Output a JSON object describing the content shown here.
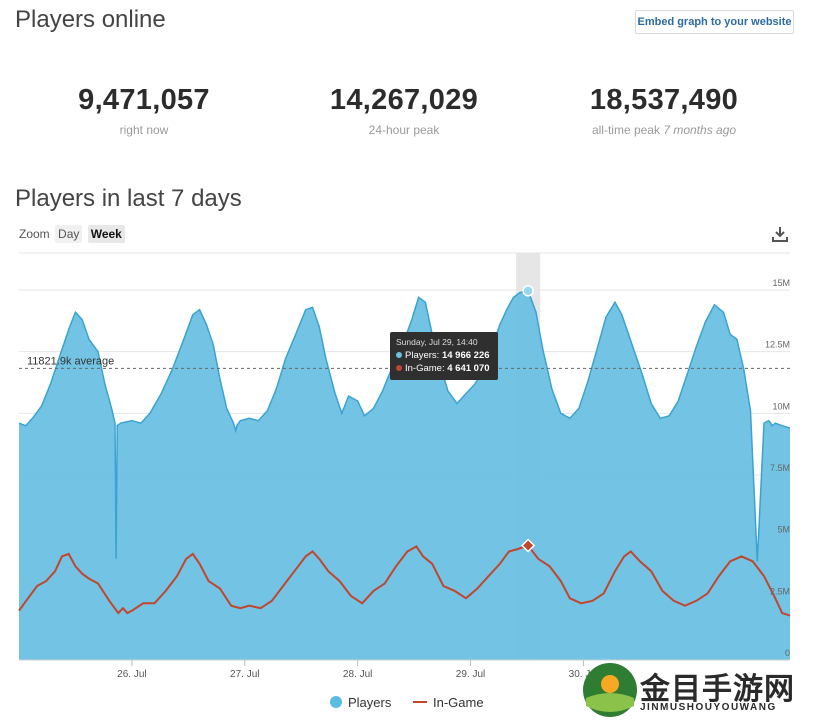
{
  "header": {
    "title": "Players online",
    "embed_label": "Embed graph to your website"
  },
  "stats": [
    {
      "value": "9,471,057",
      "label": "right now",
      "label_em": ""
    },
    {
      "value": "14,267,029",
      "label": "24-hour peak",
      "label_em": ""
    },
    {
      "value": "18,537,490",
      "label": "all-time peak",
      "label_em": "7 months ago"
    }
  ],
  "chart_section": {
    "title": "Players in last 7 days",
    "zoom_label": "Zoom",
    "zoom_options": [
      "Day",
      "Week"
    ],
    "zoom_selected": "Week",
    "download_icon": "download-icon"
  },
  "tooltip": {
    "date": "Sunday, Jul 29, 14:40",
    "players_label": "Players:",
    "players_value": "14 966 226",
    "ingame_label": "In-Game:",
    "ingame_value": "4 641 070"
  },
  "watermark": {
    "text": "金目手游网",
    "sub": "JINMUSHOUYOUWANG"
  },
  "chart_data": {
    "type": "area",
    "x_ticks": [
      "26. Jul",
      "27. Jul",
      "28. Jul",
      "29. Jul",
      "30. Jul"
    ],
    "x_tick_days": [
      1,
      2,
      3,
      4,
      5
    ],
    "x_range_days": [
      0.0,
      6.83
    ],
    "y_ticks": [
      "0",
      "2.5M",
      "5M",
      "7.5M",
      "10M",
      "12.5M",
      "15M"
    ],
    "y_tick_values": [
      0,
      2500000,
      5000000,
      7500000,
      10000000,
      12500000,
      15000000
    ],
    "ylim": [
      0,
      15000000
    ],
    "average_label": "11821.9k average",
    "average_value": 11821900,
    "legend_position": "bottom-center",
    "grid": true,
    "colors": {
      "players": "#6cc0e4",
      "players_line": "#3ba3d0",
      "ingame": "#c0462c",
      "crosshair": "#e6e6e6"
    },
    "hover_day": 4.51,
    "series": [
      {
        "name": "Players",
        "x": [
          0.0,
          0.06,
          0.12,
          0.2,
          0.28,
          0.36,
          0.44,
          0.5,
          0.56,
          0.62,
          0.7,
          0.76,
          0.82,
          0.85,
          0.86,
          0.87,
          0.9,
          1.0,
          1.08,
          1.16,
          1.26,
          1.36,
          1.46,
          1.54,
          1.6,
          1.66,
          1.72,
          1.78,
          1.84,
          1.9,
          1.92,
          1.93,
          1.96,
          2.04,
          2.12,
          2.2,
          2.28,
          2.36,
          2.46,
          2.54,
          2.6,
          2.66,
          2.72,
          2.8,
          2.86,
          2.92,
          3.0,
          3.06,
          3.14,
          3.22,
          3.3,
          3.4,
          3.48,
          3.54,
          3.6,
          3.66,
          3.72,
          3.8,
          3.88,
          3.96,
          4.04,
          4.12,
          4.2,
          4.26,
          4.32,
          4.38,
          4.44,
          4.51,
          4.58,
          4.64,
          4.72,
          4.8,
          4.88,
          4.96,
          5.04,
          5.12,
          5.2,
          5.28,
          5.34,
          5.4,
          5.46,
          5.52,
          5.6,
          5.68,
          5.76,
          5.84,
          5.92,
          6.0,
          6.08,
          6.16,
          6.24,
          6.3,
          6.36,
          6.42,
          6.48,
          6.54,
          6.6,
          6.64,
          6.66,
          6.67,
          6.7,
          6.76,
          6.83
        ],
        "values": [
          9600000,
          9500000,
          9800000,
          10300000,
          11200000,
          12300000,
          13400000,
          14100000,
          13800000,
          13000000,
          12500000,
          11200000,
          10200000,
          9600000,
          4100000,
          9500000,
          9600000,
          9700000,
          9600000,
          10000000,
          10800000,
          11800000,
          13000000,
          14000000,
          14200000,
          13600000,
          12800000,
          11400000,
          10200000,
          9600000,
          9300000,
          9500000,
          9700000,
          9800000,
          9700000,
          10100000,
          11000000,
          12200000,
          13300000,
          14200000,
          14300000,
          13500000,
          12200000,
          10800000,
          10000000,
          10700000,
          10500000,
          9900000,
          10200000,
          10900000,
          11800000,
          12800000,
          13800000,
          14700000,
          14500000,
          13200000,
          12100000,
          10900000,
          10400000,
          10800000,
          11200000,
          11800000,
          12800000,
          13600000,
          14200000,
          14700000,
          14900000,
          14966226,
          14100000,
          12600000,
          11000000,
          10000000,
          9800000,
          10200000,
          11300000,
          12600000,
          13900000,
          14500000,
          14000000,
          13200000,
          12400000,
          11600000,
          10400000,
          9800000,
          9900000,
          10500000,
          11600000,
          12700000,
          13700000,
          14400000,
          14100000,
          13200000,
          13000000,
          11800000,
          10100000,
          4000000,
          9600000,
          9700000,
          9600000,
          9500000,
          9600000,
          9500000,
          9400000
        ]
      },
      {
        "name": "In-Game",
        "x": [
          0.0,
          0.08,
          0.16,
          0.24,
          0.32,
          0.38,
          0.44,
          0.5,
          0.56,
          0.62,
          0.7,
          0.8,
          0.88,
          0.92,
          0.96,
          1.0,
          1.1,
          1.2,
          1.3,
          1.4,
          1.48,
          1.54,
          1.6,
          1.68,
          1.78,
          1.88,
          1.96,
          2.04,
          2.14,
          2.24,
          2.34,
          2.44,
          2.54,
          2.6,
          2.66,
          2.74,
          2.84,
          2.94,
          3.04,
          3.14,
          3.24,
          3.34,
          3.44,
          3.52,
          3.58,
          3.66,
          3.76,
          3.86,
          3.96,
          4.06,
          4.16,
          4.26,
          4.34,
          4.42,
          4.51,
          4.6,
          4.7,
          4.8,
          4.88,
          4.98,
          5.08,
          5.18,
          5.28,
          5.36,
          5.42,
          5.5,
          5.6,
          5.7,
          5.8,
          5.9,
          6.0,
          6.1,
          6.2,
          6.3,
          6.4,
          6.5,
          6.6,
          6.7,
          6.76,
          6.83
        ],
        "values": [
          2000000,
          2500000,
          3000000,
          3200000,
          3600000,
          4200000,
          4300000,
          3800000,
          3500000,
          3300000,
          3100000,
          2400000,
          1900000,
          2100000,
          1900000,
          2000000,
          2300000,
          2300000,
          2800000,
          3400000,
          4100000,
          4300000,
          3900000,
          3200000,
          2900000,
          2200000,
          2100000,
          2200000,
          2100000,
          2400000,
          3000000,
          3600000,
          4200000,
          4400000,
          4100000,
          3600000,
          3200000,
          2600000,
          2300000,
          2800000,
          3100000,
          3800000,
          4400000,
          4600000,
          4200000,
          3900000,
          3000000,
          2800000,
          2500000,
          2900000,
          3400000,
          3900000,
          4400000,
          4500000,
          4641070,
          4100000,
          3800000,
          3200000,
          2500000,
          2300000,
          2400000,
          2700000,
          3600000,
          4200000,
          4400000,
          4000000,
          3600000,
          2800000,
          2400000,
          2200000,
          2400000,
          2700000,
          3400000,
          4000000,
          4200000,
          4000000,
          3400000,
          2500000,
          1900000,
          1800000
        ]
      }
    ]
  }
}
